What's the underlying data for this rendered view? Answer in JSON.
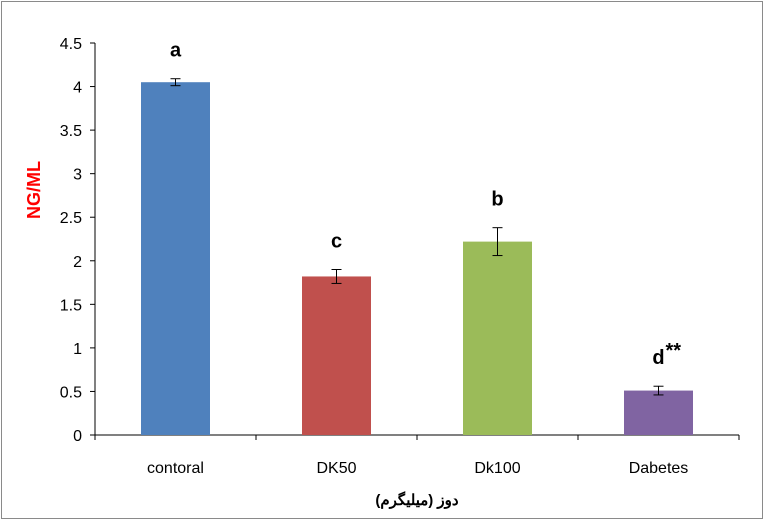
{
  "chart_data": {
    "type": "bar",
    "categories": [
      "contoral",
      "DK50",
      "Dk100",
      "Dabetes"
    ],
    "values": [
      4.05,
      1.82,
      2.22,
      0.51
    ],
    "errors": [
      0.04,
      0.08,
      0.16,
      0.05
    ],
    "letters": [
      "a",
      "c",
      "b",
      "d"
    ],
    "extra_marks": [
      "",
      "",
      "",
      "**"
    ],
    "colors": [
      "#4f81bd",
      "#c0504d",
      "#9bbb59",
      "#8064a2"
    ],
    "ylabel": "NG/ML",
    "ylabel_color": "#ff0000",
    "xlabel": "دوز (میلیگرم)",
    "ylim": [
      0,
      4.5
    ],
    "yticks": [
      "0",
      "0.5",
      "1",
      "1.5",
      "2",
      "2.5",
      "3",
      "3.5",
      "4",
      "4.5"
    ],
    "grid": false,
    "legend": "none"
  }
}
